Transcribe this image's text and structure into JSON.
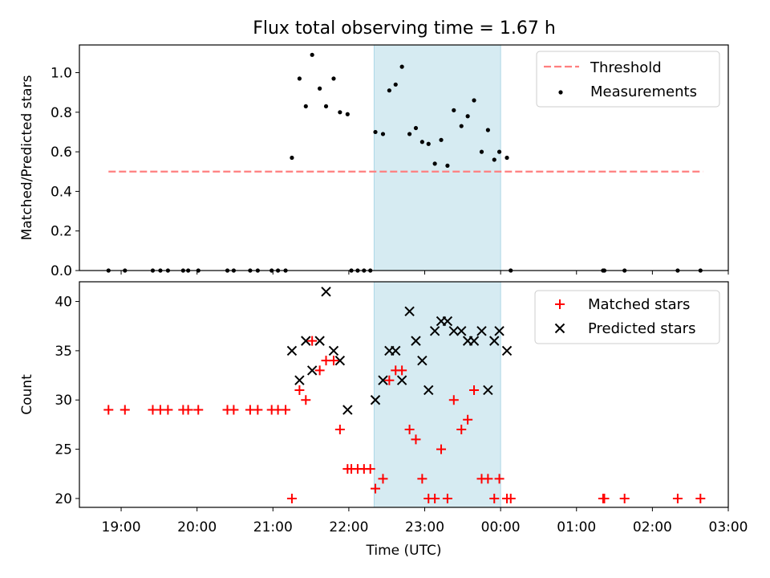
{
  "title": "Flux total observing time = 1.67 h",
  "colors": {
    "threshold": "#ff7f7f",
    "measurement": "#000000",
    "matched": "#ff0000",
    "predicted": "#000000",
    "span_fill": "#add8e6"
  },
  "chart_data": [
    {
      "type": "scatter",
      "panel": "top",
      "ylabel": "Matched/Predicted stars",
      "xlim": [
        "18:27",
        "03:00"
      ],
      "ylim": [
        0,
        1.14
      ],
      "yticks": [
        0.0,
        0.2,
        0.4,
        0.6,
        0.8,
        1.0
      ],
      "ytick_labels": [
        "0.0",
        "0.2",
        "0.4",
        "0.6",
        "0.8",
        "1.0"
      ],
      "highlight_span": [
        "22:20",
        "00:00"
      ],
      "legend_position": "top-right",
      "threshold": {
        "name": "Threshold",
        "value": 0.5,
        "x_range": [
          "18:50",
          "02:40"
        ],
        "style": "dashed"
      },
      "series": [
        {
          "name": "Measurements",
          "marker": "dot",
          "points": [
            [
              "18:50",
              0.0
            ],
            [
              "19:03",
              0.0
            ],
            [
              "19:25",
              0.0
            ],
            [
              "19:31",
              0.0
            ],
            [
              "19:37",
              0.0
            ],
            [
              "19:49",
              0.0
            ],
            [
              "19:53",
              0.0
            ],
            [
              "20:01",
              0.0
            ],
            [
              "20:24",
              0.0
            ],
            [
              "20:29",
              0.0
            ],
            [
              "20:42",
              0.0
            ],
            [
              "20:48",
              0.0
            ],
            [
              "20:59",
              0.0
            ],
            [
              "21:04",
              0.0
            ],
            [
              "21:10",
              0.0
            ],
            [
              "21:15",
              0.57
            ],
            [
              "21:21",
              0.97
            ],
            [
              "21:26",
              0.83
            ],
            [
              "21:31",
              1.09
            ],
            [
              "21:37",
              0.92
            ],
            [
              "21:42",
              0.83
            ],
            [
              "21:48",
              0.97
            ],
            [
              "21:53",
              0.8
            ],
            [
              "21:59",
              0.79
            ],
            [
              "22:02",
              0.0
            ],
            [
              "22:07",
              0.0
            ],
            [
              "22:12",
              0.0
            ],
            [
              "22:17",
              0.0
            ],
            [
              "22:21",
              0.7
            ],
            [
              "22:27",
              0.69
            ],
            [
              "22:32",
              0.91
            ],
            [
              "22:37",
              0.94
            ],
            [
              "22:42",
              1.03
            ],
            [
              "22:48",
              0.69
            ],
            [
              "22:53",
              0.72
            ],
            [
              "22:58",
              0.65
            ],
            [
              "23:03",
              0.64
            ],
            [
              "23:08",
              0.54
            ],
            [
              "23:13",
              0.66
            ],
            [
              "23:18",
              0.53
            ],
            [
              "23:23",
              0.81
            ],
            [
              "23:29",
              0.73
            ],
            [
              "23:34",
              0.78
            ],
            [
              "23:39",
              0.86
            ],
            [
              "23:45",
              0.6
            ],
            [
              "23:50",
              0.71
            ],
            [
              "23:55",
              0.56
            ],
            [
              "23:59",
              0.6
            ],
            [
              "00:05",
              0.57
            ],
            [
              "00:08",
              0.0
            ],
            [
              "01:21",
              0.0
            ],
            [
              "01:22",
              0.0
            ],
            [
              "01:38",
              0.0
            ],
            [
              "02:20",
              0.0
            ],
            [
              "02:38",
              0.0
            ]
          ]
        }
      ]
    },
    {
      "type": "scatter",
      "panel": "bottom",
      "xlabel": "Time (UTC)",
      "ylabel": "Count",
      "xlim": [
        "18:27",
        "03:00"
      ],
      "ylim": [
        19.1,
        42.0
      ],
      "xticks": [
        "19:00",
        "20:00",
        "21:00",
        "22:00",
        "23:00",
        "00:00",
        "01:00",
        "02:00",
        "03:00"
      ],
      "yticks": [
        20,
        25,
        30,
        35,
        40
      ],
      "ytick_labels": [
        "20",
        "25",
        "30",
        "35",
        "40"
      ],
      "highlight_span": [
        "22:20",
        "00:00"
      ],
      "legend_position": "top-right",
      "series": [
        {
          "name": "Matched stars",
          "marker": "plus",
          "points": [
            [
              "18:50",
              29
            ],
            [
              "19:03",
              29
            ],
            [
              "19:25",
              29
            ],
            [
              "19:31",
              29
            ],
            [
              "19:37",
              29
            ],
            [
              "19:49",
              29
            ],
            [
              "19:53",
              29
            ],
            [
              "20:01",
              29
            ],
            [
              "20:24",
              29
            ],
            [
              "20:29",
              29
            ],
            [
              "20:42",
              29
            ],
            [
              "20:48",
              29
            ],
            [
              "20:59",
              29
            ],
            [
              "21:04",
              29
            ],
            [
              "21:10",
              29
            ],
            [
              "21:15",
              20
            ],
            [
              "21:21",
              31
            ],
            [
              "21:26",
              30
            ],
            [
              "21:31",
              36
            ],
            [
              "21:37",
              33
            ],
            [
              "21:42",
              34
            ],
            [
              "21:48",
              34
            ],
            [
              "21:53",
              27
            ],
            [
              "21:59",
              23
            ],
            [
              "22:02",
              23
            ],
            [
              "22:07",
              23
            ],
            [
              "22:12",
              23
            ],
            [
              "22:17",
              23
            ],
            [
              "22:21",
              21
            ],
            [
              "22:27",
              22
            ],
            [
              "22:32",
              32
            ],
            [
              "22:37",
              33
            ],
            [
              "22:42",
              33
            ],
            [
              "22:48",
              27
            ],
            [
              "22:53",
              26
            ],
            [
              "22:58",
              22
            ],
            [
              "23:03",
              20
            ],
            [
              "23:08",
              20
            ],
            [
              "23:13",
              25
            ],
            [
              "23:18",
              20
            ],
            [
              "23:23",
              30
            ],
            [
              "23:29",
              27
            ],
            [
              "23:34",
              28
            ],
            [
              "23:39",
              31
            ],
            [
              "23:45",
              22
            ],
            [
              "23:50",
              22
            ],
            [
              "23:55",
              20
            ],
            [
              "23:59",
              22
            ],
            [
              "00:05",
              20
            ],
            [
              "00:08",
              20
            ],
            [
              "01:21",
              20
            ],
            [
              "01:22",
              20
            ],
            [
              "01:38",
              20
            ],
            [
              "02:20",
              20
            ],
            [
              "02:38",
              20
            ]
          ]
        },
        {
          "name": "Predicted stars",
          "marker": "x",
          "points": [
            [
              "21:15",
              35
            ],
            [
              "21:21",
              32
            ],
            [
              "21:26",
              36
            ],
            [
              "21:31",
              33
            ],
            [
              "21:37",
              36
            ],
            [
              "21:42",
              41
            ],
            [
              "21:48",
              35
            ],
            [
              "21:53",
              34
            ],
            [
              "21:59",
              29
            ],
            [
              "22:21",
              30
            ],
            [
              "22:27",
              32
            ],
            [
              "22:32",
              35
            ],
            [
              "22:37",
              35
            ],
            [
              "22:42",
              32
            ],
            [
              "22:48",
              39
            ],
            [
              "22:53",
              36
            ],
            [
              "22:58",
              34
            ],
            [
              "23:03",
              31
            ],
            [
              "23:08",
              37
            ],
            [
              "23:13",
              38
            ],
            [
              "23:18",
              38
            ],
            [
              "23:23",
              37
            ],
            [
              "23:29",
              37
            ],
            [
              "23:34",
              36
            ],
            [
              "23:39",
              36
            ],
            [
              "23:45",
              37
            ],
            [
              "23:50",
              31
            ],
            [
              "23:55",
              36
            ],
            [
              "23:59",
              37
            ],
            [
              "00:05",
              35
            ]
          ]
        }
      ]
    }
  ]
}
